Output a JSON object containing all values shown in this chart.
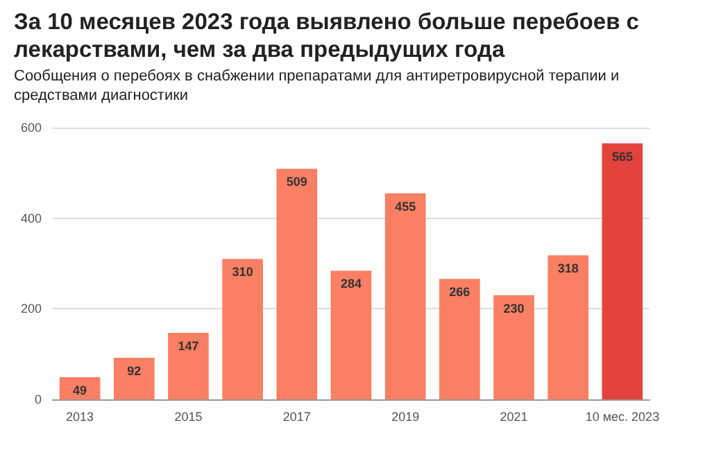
{
  "chart_data": {
    "type": "bar",
    "title": "За 10 месяцев 2023 года выявлено больше перебоев с лекарствами, чем за два предыдущих года",
    "subtitle": "Сообщения о перебоях в снабжении препаратами для антиретровирусной терапии и средствами диагностики",
    "categories": [
      "2013",
      null,
      "2015",
      null,
      "2017",
      null,
      "2019",
      null,
      "2021",
      null,
      "10 мес. 2023"
    ],
    "values": [
      49,
      92,
      147,
      310,
      509,
      284,
      455,
      266,
      230,
      318,
      565
    ],
    "colors": [
      "#fa7f63",
      "#fa7f63",
      "#fa7f63",
      "#fa7f63",
      "#fa7f63",
      "#fa7f63",
      "#fa7f63",
      "#fa7f63",
      "#fa7f63",
      "#fa7f63",
      "#e4423c"
    ],
    "ylim": [
      0,
      600
    ],
    "yticks": [
      0,
      200,
      400,
      600
    ],
    "grid": "y",
    "data_labels": true
  }
}
